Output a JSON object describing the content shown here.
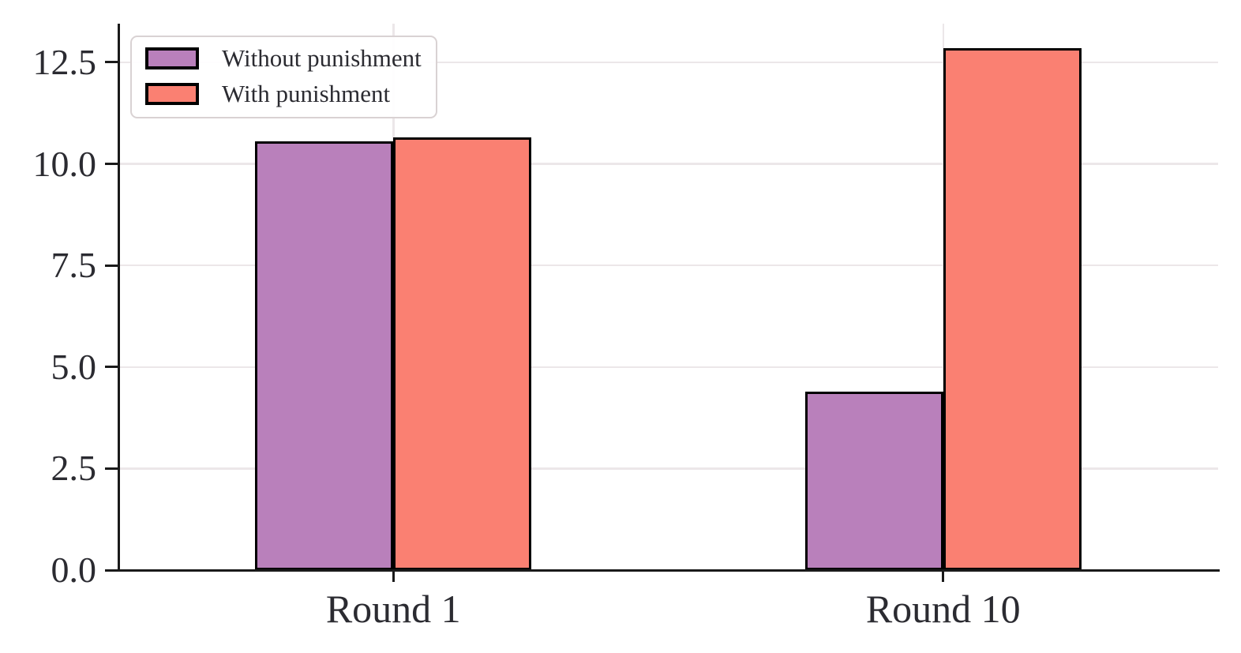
{
  "chart_data": {
    "type": "bar",
    "categories": [
      "Round 1",
      "Round 10"
    ],
    "series": [
      {
        "name": "Without punishment",
        "color": "#b980bb",
        "values": [
          10.55,
          4.4
        ]
      },
      {
        "name": "With punishment",
        "color": "#fa8072",
        "values": [
          10.65,
          12.85
        ]
      }
    ],
    "title": "",
    "xlabel": "",
    "ylabel": "",
    "ylim": [
      0,
      13.45
    ],
    "yticks": [
      "0.0",
      "2.5",
      "5.0",
      "7.5",
      "10.0",
      "12.5"
    ],
    "grid": true,
    "legend_position": "upper-left",
    "colors": {
      "grid": "#ece7e9",
      "axis": "#1a1a1a",
      "text": "#2b2b31",
      "bar_edge": "#000000",
      "legend_border": "#d9d2d3",
      "background": "#ffffff"
    }
  }
}
